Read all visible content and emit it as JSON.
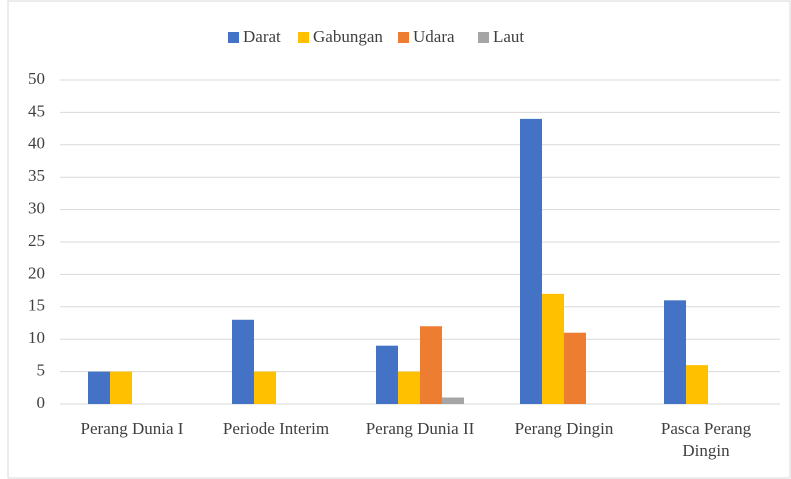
{
  "chart_data": {
    "type": "bar",
    "categories": [
      "Perang Dunia I",
      "Periode Interim",
      "Perang Dunia II",
      "Perang Dingin",
      "Pasca Perang Dingin"
    ],
    "series": [
      {
        "name": "Darat",
        "color": "#4472c4",
        "values": [
          5,
          13,
          9,
          44,
          16
        ]
      },
      {
        "name": "Gabungan",
        "color": "#ffc000",
        "values": [
          5,
          5,
          5,
          17,
          6
        ]
      },
      {
        "name": "Udara",
        "color": "#ed7d31",
        "values": [
          0,
          0,
          12,
          11,
          0
        ]
      },
      {
        "name": "Laut",
        "color": "#a5a5a5",
        "values": [
          0,
          0,
          1,
          0,
          0
        ]
      }
    ],
    "ylim": [
      0,
      50
    ],
    "yticks": [
      0,
      5,
      10,
      15,
      20,
      25,
      30,
      35,
      40,
      45,
      50
    ],
    "grid": true,
    "legend": "top"
  }
}
